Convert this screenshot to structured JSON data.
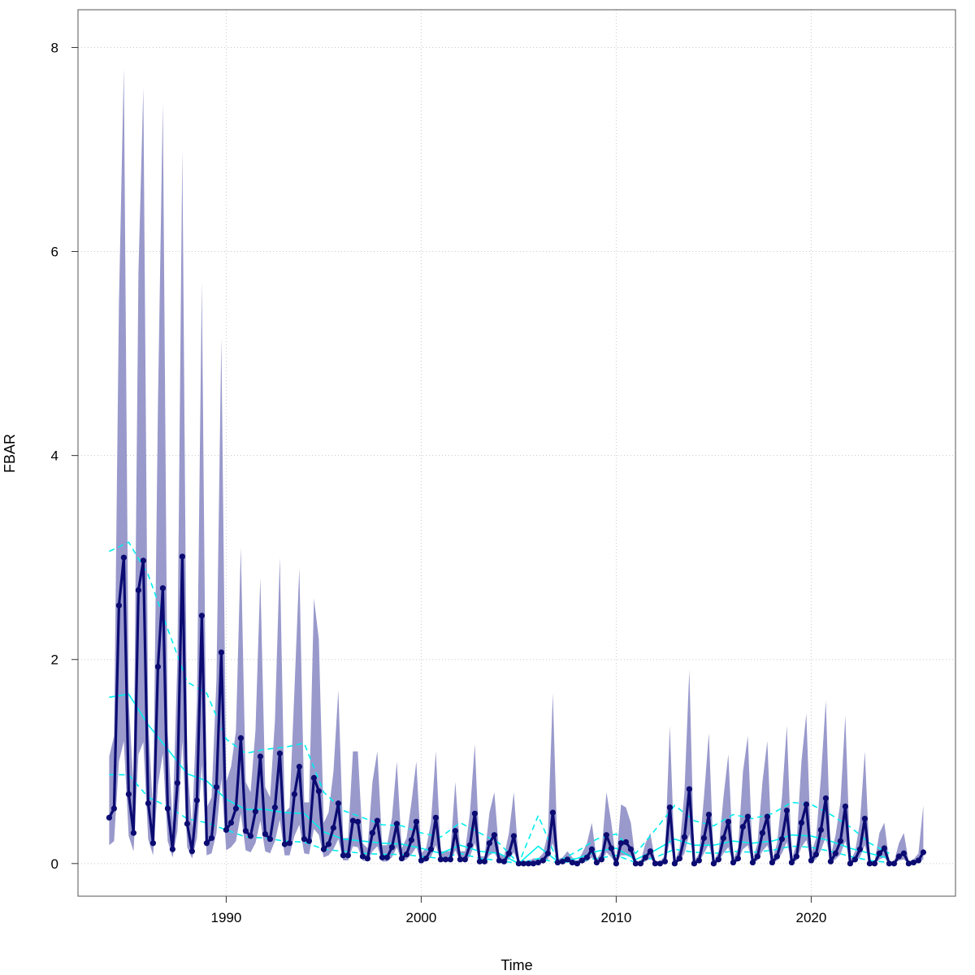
{
  "chart_data": {
    "type": "line",
    "title": "",
    "xlabel": "Time",
    "ylabel": "FBAR",
    "xlim": [
      1982.4,
      2027.4
    ],
    "ylim": [
      -0.32,
      8.37
    ],
    "grid": true,
    "x_ticks": [
      {
        "value": 1990,
        "label": "1990"
      },
      {
        "value": 2000,
        "label": "2000"
      },
      {
        "value": 2010,
        "label": "2010"
      },
      {
        "value": 2020,
        "label": "2020"
      }
    ],
    "y_ticks": [
      {
        "value": 0,
        "label": "0"
      },
      {
        "value": 2,
        "label": "2"
      },
      {
        "value": 4,
        "label": "4"
      },
      {
        "value": 6,
        "label": "6"
      },
      {
        "value": 8,
        "label": "8"
      }
    ],
    "quarterly_start": 1984,
    "quarterly_step": 0.25,
    "colors": {
      "band": "#9999cc",
      "line": "#0b0b72",
      "cyan": "#00eeee",
      "grid": "#c8c8c8"
    },
    "series": [
      {
        "name": "FBAR",
        "kind": "line+points",
        "values": [
          0.45,
          0.54,
          2.53,
          3.0,
          0.68,
          0.3,
          2.68,
          2.97,
          0.59,
          0.2,
          1.93,
          2.7,
          0.54,
          0.14,
          0.79,
          3.01,
          0.39,
          0.12,
          0.62,
          2.43,
          0.2,
          0.25,
          0.75,
          2.07,
          0.33,
          0.4,
          0.54,
          1.23,
          0.32,
          0.27,
          0.51,
          1.05,
          0.29,
          0.24,
          0.55,
          1.08,
          0.19,
          0.2,
          0.68,
          0.95,
          0.24,
          0.22,
          0.84,
          0.71,
          0.14,
          0.19,
          0.35,
          0.59,
          0.08,
          0.08,
          0.42,
          0.41,
          0.07,
          0.05,
          0.3,
          0.42,
          0.06,
          0.06,
          0.16,
          0.39,
          0.05,
          0.09,
          0.23,
          0.41,
          0.03,
          0.05,
          0.14,
          0.45,
          0.04,
          0.04,
          0.04,
          0.32,
          0.04,
          0.04,
          0.18,
          0.49,
          0.02,
          0.02,
          0.2,
          0.28,
          0.03,
          0.02,
          0.1,
          0.27,
          0.0,
          0.0,
          0.0,
          0.0,
          0.01,
          0.03,
          0.1,
          0.5,
          0.01,
          0.02,
          0.04,
          0.01,
          0.0,
          0.03,
          0.06,
          0.14,
          0.01,
          0.04,
          0.28,
          0.15,
          0.0,
          0.2,
          0.21,
          0.14,
          0.0,
          0.0,
          0.06,
          0.12,
          0.0,
          0.0,
          0.02,
          0.55,
          0.0,
          0.05,
          0.26,
          0.73,
          0.0,
          0.03,
          0.25,
          0.48,
          0.0,
          0.04,
          0.25,
          0.41,
          0.01,
          0.05,
          0.36,
          0.46,
          0.01,
          0.07,
          0.3,
          0.46,
          0.01,
          0.07,
          0.24,
          0.52,
          0.01,
          0.07,
          0.4,
          0.58,
          0.03,
          0.09,
          0.33,
          0.64,
          0.02,
          0.1,
          0.22,
          0.56,
          0.0,
          0.04,
          0.14,
          0.44,
          0.0,
          0.0,
          0.1,
          0.15,
          0.0,
          0.0,
          0.07,
          0.1,
          0.0,
          0.01,
          0.03,
          0.11
        ]
      },
      {
        "name": "band_upper",
        "kind": "area-upper",
        "values": [
          1.05,
          1.25,
          5.5,
          7.8,
          1.6,
          0.75,
          5.8,
          7.6,
          1.4,
          0.5,
          4.5,
          7.45,
          1.3,
          0.4,
          2.0,
          7.0,
          1.0,
          0.35,
          1.6,
          5.7,
          0.55,
          0.65,
          1.8,
          5.15,
          0.8,
          0.95,
          1.3,
          3.1,
          0.8,
          0.7,
          1.3,
          2.8,
          0.75,
          0.65,
          1.4,
          3.0,
          0.5,
          0.55,
          1.7,
          2.9,
          0.6,
          0.6,
          2.6,
          2.2,
          0.4,
          0.5,
          0.9,
          1.7,
          0.25,
          0.25,
          1.1,
          1.1,
          0.2,
          0.15,
          0.8,
          1.1,
          0.18,
          0.18,
          0.45,
          1.0,
          0.15,
          0.25,
          0.6,
          1.0,
          0.1,
          0.15,
          0.4,
          1.1,
          0.12,
          0.12,
          0.12,
          0.8,
          0.12,
          0.12,
          0.5,
          1.17,
          0.07,
          0.07,
          0.5,
          0.7,
          0.1,
          0.07,
          0.3,
          0.7,
          0.02,
          0.02,
          0.02,
          0.05,
          0.05,
          0.1,
          0.3,
          1.67,
          0.04,
          0.06,
          0.12,
          0.06,
          0.02,
          0.1,
          0.2,
          0.4,
          0.04,
          0.12,
          0.7,
          0.4,
          0.02,
          0.58,
          0.55,
          0.4,
          0.02,
          0.02,
          0.2,
          0.3,
          0.02,
          0.02,
          0.08,
          1.35,
          0.02,
          0.15,
          0.7,
          1.9,
          0.02,
          0.1,
          0.65,
          1.28,
          0.02,
          0.12,
          0.65,
          1.07,
          0.04,
          0.15,
          0.9,
          1.25,
          0.04,
          0.2,
          0.8,
          1.2,
          0.04,
          0.2,
          0.65,
          1.35,
          0.04,
          0.2,
          1.0,
          1.47,
          0.1,
          0.25,
          0.85,
          1.6,
          0.07,
          0.28,
          0.6,
          1.45,
          0.02,
          0.12,
          0.4,
          1.1,
          0.02,
          0.02,
          0.3,
          0.4,
          0.02,
          0.02,
          0.2,
          0.3,
          0.02,
          0.04,
          0.1,
          0.57
        ]
      },
      {
        "name": "band_lower",
        "kind": "area-lower",
        "values": [
          0.18,
          0.22,
          1.0,
          1.2,
          0.27,
          0.12,
          1.07,
          1.19,
          0.24,
          0.08,
          0.77,
          1.08,
          0.22,
          0.06,
          0.32,
          1.2,
          0.16,
          0.05,
          0.25,
          0.97,
          0.08,
          0.1,
          0.3,
          0.83,
          0.13,
          0.16,
          0.22,
          0.49,
          0.13,
          0.11,
          0.2,
          0.42,
          0.12,
          0.1,
          0.22,
          0.43,
          0.08,
          0.08,
          0.27,
          0.38,
          0.1,
          0.09,
          0.34,
          0.28,
          0.06,
          0.08,
          0.14,
          0.24,
          0.03,
          0.03,
          0.17,
          0.16,
          0.03,
          0.02,
          0.12,
          0.17,
          0.02,
          0.02,
          0.06,
          0.16,
          0.02,
          0.04,
          0.09,
          0.16,
          0.01,
          0.02,
          0.06,
          0.18,
          0.02,
          0.02,
          0.02,
          0.13,
          0.02,
          0.02,
          0.07,
          0.2,
          0.01,
          0.01,
          0.08,
          0.11,
          0.01,
          0.01,
          0.04,
          0.11,
          0,
          0,
          0,
          0,
          0,
          0.01,
          0.04,
          0.2,
          0,
          0.01,
          0.02,
          0,
          0,
          0.01,
          0.02,
          0.06,
          0,
          0.02,
          0.11,
          0.06,
          0,
          0.08,
          0.08,
          0.06,
          0,
          0,
          0.02,
          0.05,
          0,
          0,
          0.01,
          0.22,
          0,
          0.02,
          0.1,
          0.29,
          0,
          0.01,
          0.1,
          0.19,
          0,
          0.02,
          0.1,
          0.16,
          0,
          0.02,
          0.14,
          0.18,
          0,
          0.03,
          0.12,
          0.18,
          0,
          0.03,
          0.1,
          0.21,
          0,
          0.03,
          0.16,
          0.23,
          0.01,
          0.04,
          0.13,
          0.26,
          0.01,
          0.04,
          0.09,
          0.22,
          0,
          0.02,
          0.06,
          0.18,
          0,
          0,
          0.04,
          0.06,
          0,
          0,
          0.03,
          0.04,
          0,
          0,
          0.01,
          0.04
        ]
      },
      {
        "name": "annual_median",
        "kind": "line-solid",
        "x_start": 1984,
        "x_step": 1,
        "values": [
          1.63,
          1.66,
          1.36,
          1.12,
          0.88,
          0.81,
          0.63,
          0.53,
          0.53,
          0.5,
          0.49,
          0.31,
          0.24,
          0.22,
          0.2,
          0.19,
          0.15,
          0.1,
          0.18,
          0.12,
          0.1,
          0.0,
          0.17,
          0.02,
          0.05,
          0.12,
          0.15,
          0.04,
          0.13,
          0.24,
          0.18,
          0.18,
          0.22,
          0.2,
          0.22,
          0.28,
          0.27,
          0.22,
          0.15,
          0.1,
          0.05
        ]
      },
      {
        "name": "annual_upper",
        "kind": "line-dashed",
        "x_start": 1984,
        "x_step": 1,
        "values": [
          3.06,
          3.15,
          2.83,
          2.3,
          1.78,
          1.67,
          1.22,
          1.08,
          1.12,
          1.14,
          1.18,
          0.7,
          0.52,
          0.45,
          0.38,
          0.37,
          0.3,
          0.26,
          0.4,
          0.3,
          0.2,
          0.0,
          0.47,
          0.02,
          0.12,
          0.24,
          0.29,
          0.1,
          0.33,
          0.57,
          0.42,
          0.37,
          0.48,
          0.44,
          0.49,
          0.6,
          0.58,
          0.48,
          0.36,
          0.2,
          0.1
        ]
      },
      {
        "name": "annual_lower",
        "kind": "line-dashed",
        "x_start": 1984,
        "x_step": 1,
        "values": [
          0.87,
          0.87,
          0.65,
          0.56,
          0.44,
          0.4,
          0.33,
          0.26,
          0.25,
          0.22,
          0.21,
          0.14,
          0.12,
          0.1,
          0.09,
          0.09,
          0.07,
          0.05,
          0.1,
          0.05,
          0.03,
          0.0,
          0.05,
          0.01,
          0.02,
          0.05,
          0.08,
          0.01,
          0.06,
          0.14,
          0.11,
          0.1,
          0.12,
          0.11,
          0.13,
          0.17,
          0.16,
          0.12,
          0.07,
          0.03,
          0.01
        ]
      }
    ]
  }
}
